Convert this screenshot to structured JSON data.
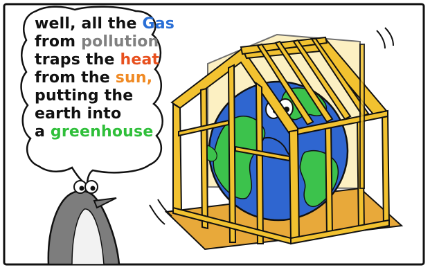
{
  "speech": {
    "lines": [
      [
        "well, all the ",
        "Gas"
      ],
      [
        "from ",
        "pollution"
      ],
      [
        "traps the ",
        "heat"
      ],
      [
        "from the ",
        "sun,"
      ],
      [
        "putting the"
      ],
      [
        "earth into"
      ],
      [
        "a ",
        "greenhouse"
      ]
    ],
    "text": "well, all the Gas from pollution traps the heat from the sun, putting the earth into a greenhouse",
    "highlight_colors": {
      "Gas": "#2a6fd6",
      "pollution": "#808080",
      "heat": "#e8501e",
      "sun": "#f08a24",
      "greenhouse": "#2fbf3a"
    }
  },
  "colors": {
    "frame": "#111111",
    "house_wood": "#f2c230",
    "house_wood_dark": "#c89a10",
    "house_floor": "#e8a93a",
    "ocean": "#2f66d0",
    "land": "#3cc24c",
    "penguin_gray": "#7d7d7d",
    "penguin_white": "#f2f2f2"
  },
  "icons": {
    "frame": "panel-border",
    "character": "penguin-icon",
    "planet": "earth-icon",
    "structure": "greenhouse-frame-icon"
  }
}
